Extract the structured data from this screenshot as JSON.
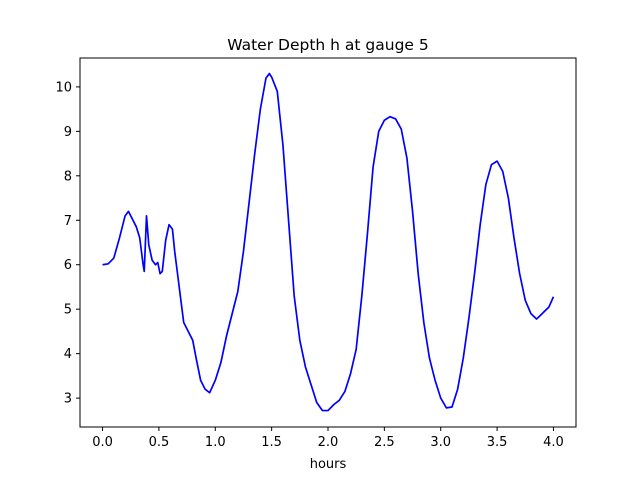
{
  "chart_data": {
    "type": "line",
    "title": "Water Depth h at gauge 5",
    "xlabel": "hours",
    "ylabel": "",
    "xlim": [
      -0.2,
      4.2
    ],
    "ylim": [
      2.35,
      10.65
    ],
    "xticks": [
      0.0,
      0.5,
      1.0,
      1.5,
      2.0,
      2.5,
      3.0,
      3.5,
      4.0
    ],
    "xtick_labels": [
      "0.0",
      "0.5",
      "1.0",
      "1.5",
      "2.0",
      "2.5",
      "3.0",
      "3.5",
      "4.0"
    ],
    "yticks": [
      3,
      4,
      5,
      6,
      7,
      8,
      9,
      10
    ],
    "ytick_labels": [
      "3",
      "4",
      "5",
      "6",
      "7",
      "8",
      "9",
      "10"
    ],
    "grid": false,
    "series": [
      {
        "color": "#0000ff",
        "x": [
          0.0,
          0.05,
          0.1,
          0.15,
          0.2,
          0.23,
          0.26,
          0.3,
          0.33,
          0.36,
          0.37,
          0.39,
          0.41,
          0.44,
          0.47,
          0.49,
          0.51,
          0.53,
          0.56,
          0.59,
          0.62,
          0.64,
          0.66,
          0.68,
          0.7,
          0.72,
          0.76,
          0.8,
          0.83,
          0.87,
          0.91,
          0.95,
          1.0,
          1.05,
          1.1,
          1.15,
          1.2,
          1.25,
          1.3,
          1.35,
          1.4,
          1.45,
          1.48,
          1.5,
          1.55,
          1.6,
          1.65,
          1.7,
          1.75,
          1.8,
          1.85,
          1.9,
          1.95,
          2.0,
          2.05,
          2.1,
          2.15,
          2.2,
          2.25,
          2.3,
          2.35,
          2.4,
          2.45,
          2.5,
          2.55,
          2.6,
          2.65,
          2.7,
          2.75,
          2.8,
          2.85,
          2.9,
          2.95,
          3.0,
          3.05,
          3.1,
          3.15,
          3.2,
          3.25,
          3.3,
          3.35,
          3.4,
          3.45,
          3.5,
          3.55,
          3.6,
          3.65,
          3.7,
          3.75,
          3.8,
          3.85,
          3.88,
          3.92,
          3.96,
          4.0
        ],
        "y": [
          6.0,
          6.02,
          6.15,
          6.6,
          7.1,
          7.2,
          7.05,
          6.85,
          6.6,
          6.0,
          5.85,
          7.1,
          6.45,
          6.1,
          6.0,
          6.05,
          5.8,
          5.85,
          6.55,
          6.9,
          6.8,
          6.3,
          5.9,
          5.5,
          5.1,
          4.7,
          4.5,
          4.3,
          3.9,
          3.4,
          3.2,
          3.12,
          3.4,
          3.8,
          4.4,
          4.9,
          5.4,
          6.3,
          7.4,
          8.5,
          9.5,
          10.2,
          10.3,
          10.22,
          9.9,
          8.7,
          7.0,
          5.3,
          4.3,
          3.7,
          3.3,
          2.9,
          2.72,
          2.72,
          2.85,
          2.95,
          3.15,
          3.55,
          4.1,
          5.3,
          6.7,
          8.2,
          9.0,
          9.25,
          9.33,
          9.28,
          9.05,
          8.4,
          7.2,
          5.8,
          4.7,
          3.9,
          3.4,
          3.0,
          2.78,
          2.8,
          3.2,
          3.9,
          4.8,
          5.8,
          6.9,
          7.8,
          8.25,
          8.33,
          8.1,
          7.5,
          6.6,
          5.8,
          5.2,
          4.9,
          4.78,
          4.85,
          4.95,
          5.05,
          5.28
        ]
      }
    ]
  }
}
